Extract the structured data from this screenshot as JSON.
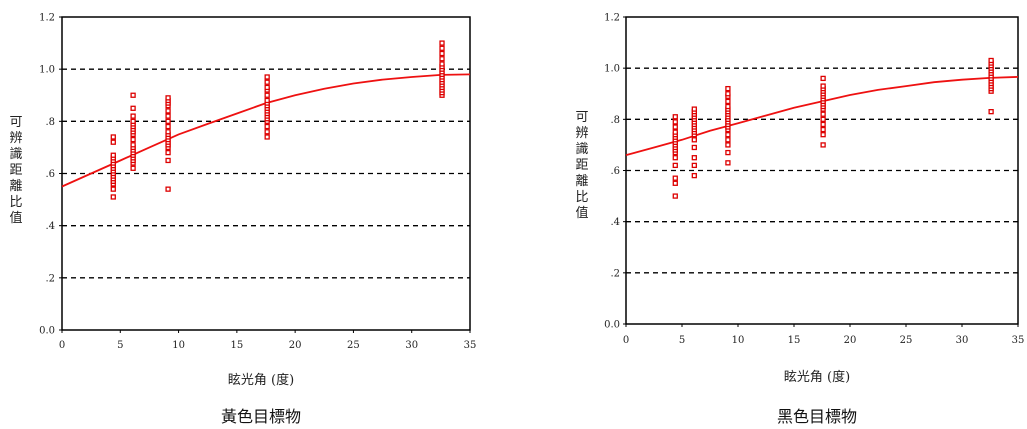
{
  "chart_data": [
    {
      "type": "scatter",
      "title": "",
      "caption": "黃色目標物",
      "xlabel": "眩光角 (度)",
      "ylabel": "可辨識距離比值",
      "xlim": [
        0,
        35
      ],
      "ylim": [
        0,
        1.2
      ],
      "x_ticks": [
        "0",
        "5",
        "10",
        "15",
        "20",
        "25",
        "30",
        "35"
      ],
      "y_ticks": [
        "0.0",
        ".2",
        ".4",
        ".6",
        ".8",
        "1.0",
        "1.2"
      ],
      "grid": "horizontal dashed",
      "marker_color": "#dd0000",
      "curve_color": "#ee1111",
      "points_by_x": [
        {
          "x": 4.4,
          "y": [
            0.51,
            0.54,
            0.56,
            0.57,
            0.58,
            0.59,
            0.6,
            0.61,
            0.62,
            0.63,
            0.64,
            0.65,
            0.66,
            0.67,
            0.72,
            0.74
          ]
        },
        {
          "x": 6.1,
          "y": [
            0.62,
            0.64,
            0.65,
            0.66,
            0.67,
            0.68,
            0.69,
            0.7,
            0.71,
            0.73,
            0.75,
            0.76,
            0.77,
            0.78,
            0.79,
            0.8,
            0.82,
            0.85,
            0.9
          ]
        },
        {
          "x": 9.1,
          "y": [
            0.54,
            0.65,
            0.68,
            0.7,
            0.71,
            0.72,
            0.73,
            0.74,
            0.75,
            0.76,
            0.78,
            0.8,
            0.82,
            0.84,
            0.86,
            0.87,
            0.88,
            0.89
          ]
        },
        {
          "x": 17.6,
          "y": [
            0.74,
            0.76,
            0.78,
            0.8,
            0.81,
            0.82,
            0.83,
            0.84,
            0.85,
            0.86,
            0.87,
            0.88,
            0.9,
            0.92,
            0.93,
            0.95,
            0.97
          ]
        },
        {
          "x": 32.6,
          "y": [
            0.9,
            0.91,
            0.92,
            0.93,
            0.94,
            0.95,
            0.96,
            0.97,
            0.98,
            0.99,
            1.0,
            1.01,
            1.02,
            1.04,
            1.06,
            1.08,
            1.1
          ]
        }
      ],
      "fit_curve": [
        {
          "x": 0,
          "y": 0.55
        },
        {
          "x": 2.5,
          "y": 0.6
        },
        {
          "x": 5,
          "y": 0.65
        },
        {
          "x": 7.5,
          "y": 0.7
        },
        {
          "x": 10,
          "y": 0.75
        },
        {
          "x": 12.5,
          "y": 0.79
        },
        {
          "x": 15,
          "y": 0.83
        },
        {
          "x": 17.5,
          "y": 0.87
        },
        {
          "x": 20,
          "y": 0.9
        },
        {
          "x": 22.5,
          "y": 0.925
        },
        {
          "x": 25,
          "y": 0.945
        },
        {
          "x": 27.5,
          "y": 0.96
        },
        {
          "x": 30,
          "y": 0.97
        },
        {
          "x": 32.5,
          "y": 0.978
        },
        {
          "x": 35,
          "y": 0.98
        }
      ]
    },
    {
      "type": "scatter",
      "title": "",
      "caption": "黑色目標物",
      "xlabel": "眩光角 (度)",
      "ylabel": "可辨識距離比值",
      "xlim": [
        0,
        35
      ],
      "ylim": [
        0,
        1.2
      ],
      "x_ticks": [
        "0",
        "5",
        "10",
        "15",
        "20",
        "25",
        "30",
        "35"
      ],
      "y_ticks": [
        "0.0",
        ".2",
        ".4",
        ".6",
        ".8",
        "1.0",
        "1.2"
      ],
      "grid": "horizontal dashed",
      "marker_color": "#dd0000",
      "curve_color": "#ee1111",
      "points_by_x": [
        {
          "x": 4.4,
          "y": [
            0.5,
            0.55,
            0.57,
            0.62,
            0.65,
            0.67,
            0.68,
            0.69,
            0.7,
            0.71,
            0.72,
            0.73,
            0.74,
            0.75,
            0.77,
            0.79,
            0.81
          ]
        },
        {
          "x": 6.1,
          "y": [
            0.58,
            0.62,
            0.65,
            0.69,
            0.72,
            0.74,
            0.75,
            0.76,
            0.77,
            0.78,
            0.79,
            0.8,
            0.81,
            0.82,
            0.83,
            0.84
          ]
        },
        {
          "x": 9.1,
          "y": [
            0.63,
            0.67,
            0.7,
            0.72,
            0.74,
            0.76,
            0.77,
            0.78,
            0.79,
            0.8,
            0.81,
            0.82,
            0.83,
            0.84,
            0.85,
            0.87,
            0.89,
            0.9,
            0.92
          ]
        },
        {
          "x": 17.6,
          "y": [
            0.7,
            0.74,
            0.76,
            0.78,
            0.8,
            0.82,
            0.84,
            0.85,
            0.86,
            0.87,
            0.88,
            0.89,
            0.9,
            0.91,
            0.92,
            0.93,
            0.96
          ]
        },
        {
          "x": 32.6,
          "y": [
            0.83,
            0.91,
            0.92,
            0.93,
            0.94,
            0.95,
            0.96,
            0.97,
            0.98,
            0.99,
            1.0,
            1.01,
            1.02,
            1.03
          ]
        }
      ],
      "fit_curve": [
        {
          "x": 0,
          "y": 0.66
        },
        {
          "x": 2.5,
          "y": 0.69
        },
        {
          "x": 5,
          "y": 0.72
        },
        {
          "x": 7.5,
          "y": 0.755
        },
        {
          "x": 10,
          "y": 0.785
        },
        {
          "x": 12.5,
          "y": 0.815
        },
        {
          "x": 15,
          "y": 0.845
        },
        {
          "x": 17.5,
          "y": 0.87
        },
        {
          "x": 20,
          "y": 0.895
        },
        {
          "x": 22.5,
          "y": 0.915
        },
        {
          "x": 25,
          "y": 0.93
        },
        {
          "x": 27.5,
          "y": 0.945
        },
        {
          "x": 30,
          "y": 0.955
        },
        {
          "x": 32.5,
          "y": 0.962
        },
        {
          "x": 35,
          "y": 0.966
        }
      ]
    }
  ]
}
